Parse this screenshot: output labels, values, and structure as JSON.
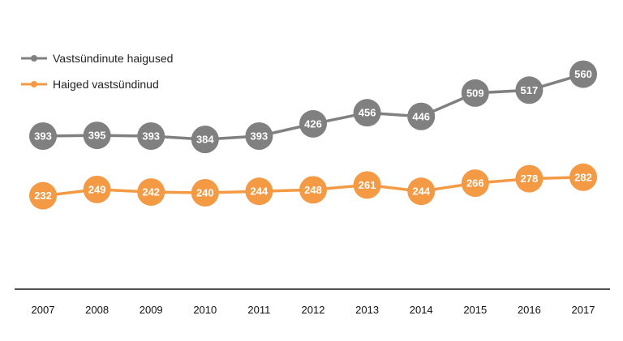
{
  "chart_data": {
    "type": "line",
    "title": "",
    "xlabel": "",
    "ylabel": "",
    "grid": false,
    "legend_position": "top-left",
    "x": [
      "2007",
      "2008",
      "2009",
      "2010",
      "2011",
      "2012",
      "2013",
      "2014",
      "2015",
      "2016",
      "2017"
    ],
    "series": [
      {
        "name": "Vastsündinute haigused",
        "color": "#808080",
        "values": [
          393,
          395,
          393,
          384,
          393,
          426,
          456,
          446,
          509,
          517,
          560
        ]
      },
      {
        "name": "Haiged vastsündinud",
        "color": "#F49A45",
        "values": [
          232,
          249,
          242,
          240,
          244,
          248,
          261,
          244,
          266,
          278,
          282
        ]
      }
    ]
  }
}
